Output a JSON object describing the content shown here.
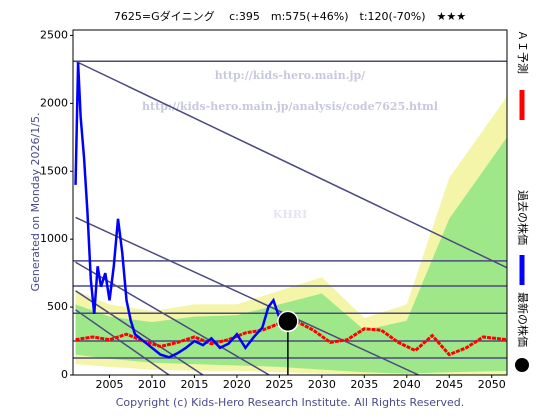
{
  "chart_data": {
    "type": "line",
    "title": "7625=Gダイニング　 c:395　m:575(+46%)　t:120(-70%)　★★★",
    "side_note": "Generated on Monday 2026/1/5.",
    "footer": "Copyright (c) Kids-Hero Research Institute. All Rights Reserved.",
    "watermarks": [
      "http://kids-hero.main.jp/",
      "http://kids-hero.main.jp/analysis/code7625.html",
      "KHRI"
    ],
    "xlim": [
      2000.7,
      2051.8
    ],
    "ylim": [
      0,
      2540
    ],
    "xticks": [
      2005,
      2010,
      2015,
      2020,
      2025,
      2030,
      2035,
      2040,
      2045,
      2050
    ],
    "yticks": [
      0,
      500,
      1000,
      1500,
      2000,
      2500
    ],
    "bands": [
      {
        "color": "#f4f5a8",
        "x": [
          2001,
          2005,
          2010,
          2015,
          2020,
          2025,
          2030,
          2035,
          2040,
          2045,
          2051.8
        ],
        "upper": [
          620,
          520,
          470,
          520,
          520,
          620,
          720,
          420,
          520,
          1450,
          2050
        ],
        "lower": [
          80,
          60,
          40,
          30,
          30,
          20,
          10,
          0,
          0,
          0,
          0
        ]
      },
      {
        "color": "#9fe88a",
        "x": [
          2001,
          2005,
          2010,
          2015,
          2020,
          2025,
          2030,
          2035,
          2040,
          2045,
          2051.8
        ],
        "upper": [
          520,
          430,
          390,
          430,
          440,
          520,
          600,
          330,
          400,
          1150,
          1750
        ],
        "lower": [
          150,
          120,
          90,
          80,
          70,
          60,
          40,
          20,
          10,
          20,
          30
        ]
      }
    ],
    "trend_lines": [
      {
        "color": "#4b4b80",
        "x": [
          2001,
          2051.8
        ],
        "values": [
          2310,
          790
        ]
      },
      {
        "color": "#4b4b80",
        "x": [
          2001,
          2041.4
        ],
        "values": [
          1160,
          0
        ]
      },
      {
        "color": "#4b4b80",
        "x": [
          2001,
          2023.8
        ],
        "values": [
          830,
          0
        ]
      },
      {
        "color": "#4b4b80",
        "x": [
          2001,
          2016
        ],
        "values": [
          620,
          0
        ]
      },
      {
        "color": "#4b4b80",
        "x": [
          2001,
          2012
        ],
        "values": [
          480,
          0
        ]
      }
    ],
    "hlines": [
      {
        "color": "#4b4b80",
        "value": 2310
      },
      {
        "color": "#4b4b80",
        "value": 840
      },
      {
        "color": "#4b4b80",
        "value": 655
      },
      {
        "color": "#4b4b80",
        "value": 455
      },
      {
        "color": "#4b4b80",
        "value": 250
      },
      {
        "color": "#4b4b80",
        "value": 125
      }
    ],
    "series": [
      {
        "name": "ＡＩ予測",
        "color": "#ff0000",
        "x": [
          2001,
          2003,
          2005,
          2007,
          2009,
          2011,
          2013,
          2015,
          2017,
          2019,
          2021,
          2023,
          2025,
          2027,
          2029,
          2031,
          2033,
          2035,
          2037,
          2039,
          2041,
          2043,
          2045,
          2047,
          2049,
          2051.8
        ],
        "values": [
          260,
          280,
          260,
          300,
          250,
          210,
          240,
          280,
          230,
          260,
          310,
          330,
          380,
          395,
          330,
          240,
          260,
          340,
          330,
          240,
          180,
          290,
          150,
          200,
          280,
          260
        ]
      },
      {
        "name": "過去の株価",
        "color": "#0000ff",
        "x": [
          2001,
          2001.3,
          2001.6,
          2002,
          2002.4,
          2002.8,
          2003.2,
          2003.6,
          2004,
          2004.5,
          2005,
          2005.5,
          2006,
          2006.5,
          2007,
          2007.5,
          2008,
          2009,
          2010,
          2011,
          2012,
          2013,
          2014,
          2015,
          2016,
          2017,
          2018,
          2019,
          2020,
          2021,
          2022,
          2023,
          2023.7,
          2024.3,
          2025,
          2025.6
        ],
        "values": [
          1400,
          2300,
          1900,
          1600,
          1200,
          700,
          450,
          800,
          650,
          750,
          550,
          800,
          1150,
          900,
          550,
          400,
          300,
          250,
          200,
          150,
          130,
          160,
          200,
          250,
          220,
          270,
          200,
          230,
          300,
          200,
          280,
          350,
          500,
          550,
          420,
          400
        ]
      },
      {
        "name": "最新の株価",
        "color": "#000000",
        "x": [
          2026
        ],
        "values": [
          395
        ]
      }
    ]
  }
}
